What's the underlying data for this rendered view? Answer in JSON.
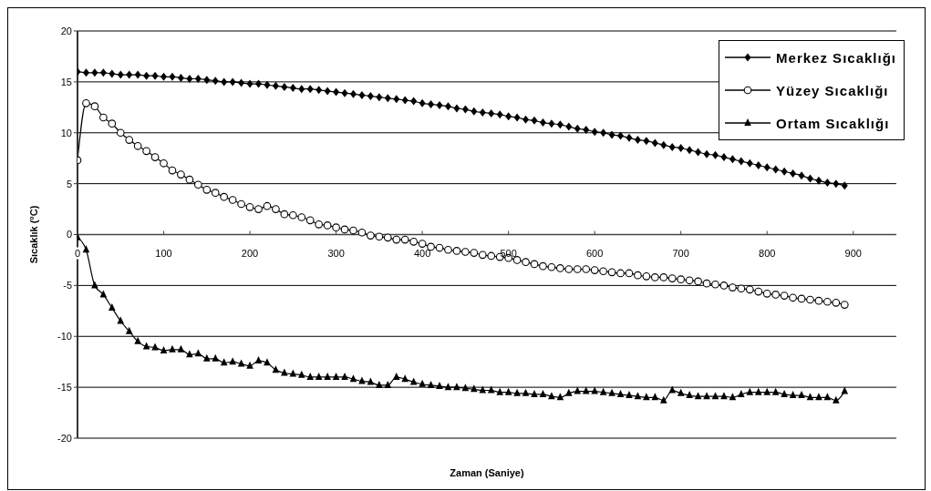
{
  "chart_data": {
    "type": "line",
    "xlabel": "Zaman (Saniye)",
    "ylabel": "Sıcaklık (°C)",
    "x": [
      0,
      10,
      20,
      30,
      40,
      50,
      60,
      70,
      80,
      90,
      100,
      110,
      120,
      130,
      140,
      150,
      160,
      170,
      180,
      190,
      200,
      210,
      220,
      230,
      240,
      250,
      260,
      270,
      280,
      290,
      300,
      310,
      320,
      330,
      340,
      350,
      360,
      370,
      380,
      390,
      400,
      410,
      420,
      430,
      440,
      450,
      460,
      470,
      480,
      490,
      500,
      510,
      520,
      530,
      540,
      550,
      560,
      570,
      580,
      590,
      600,
      610,
      620,
      630,
      640,
      650,
      660,
      670,
      680,
      690,
      700,
      710,
      720,
      730,
      740,
      750,
      760,
      770,
      780,
      790,
      800,
      810,
      820,
      830,
      840,
      850,
      860,
      870,
      880,
      890
    ],
    "xlim": [
      0,
      950
    ],
    "xticks": [
      0,
      100,
      200,
      300,
      400,
      500,
      600,
      700,
      800,
      900
    ],
    "ylim": [
      -20,
      20
    ],
    "yticks": [
      -20,
      -15,
      -10,
      -5,
      0,
      5,
      10,
      15,
      20
    ],
    "grid": "y",
    "legend": "top right",
    "line_style": "solid",
    "series": [
      {
        "name": "Merkez Sıcaklığı",
        "color": "#000000",
        "marker": "diamond",
        "values": [
          16.0,
          15.9,
          15.9,
          15.9,
          15.8,
          15.7,
          15.7,
          15.7,
          15.6,
          15.6,
          15.5,
          15.5,
          15.4,
          15.3,
          15.3,
          15.2,
          15.1,
          15.0,
          15.0,
          14.9,
          14.8,
          14.8,
          14.7,
          14.6,
          14.5,
          14.4,
          14.3,
          14.3,
          14.2,
          14.1,
          14.0,
          13.9,
          13.8,
          13.7,
          13.6,
          13.5,
          13.4,
          13.3,
          13.2,
          13.1,
          12.9,
          12.8,
          12.7,
          12.6,
          12.4,
          12.3,
          12.1,
          12.0,
          11.9,
          11.8,
          11.6,
          11.5,
          11.3,
          11.2,
          11.0,
          10.9,
          10.8,
          10.6,
          10.4,
          10.3,
          10.1,
          10.0,
          9.8,
          9.7,
          9.5,
          9.3,
          9.2,
          9.0,
          8.8,
          8.6,
          8.5,
          8.3,
          8.1,
          7.9,
          7.8,
          7.6,
          7.4,
          7.2,
          7.0,
          6.8,
          6.6,
          6.4,
          6.2,
          6.0,
          5.8,
          5.5,
          5.3,
          5.1,
          5.0,
          4.8
        ]
      },
      {
        "name": "Yüzey Sıcaklığı",
        "color": "#000000",
        "marker": "circle",
        "values": [
          7.3,
          12.9,
          12.6,
          11.5,
          10.9,
          10.0,
          9.3,
          8.7,
          8.2,
          7.6,
          7.0,
          6.3,
          5.9,
          5.4,
          4.9,
          4.4,
          4.1,
          3.7,
          3.4,
          3.0,
          2.7,
          2.5,
          2.8,
          2.5,
          2.0,
          1.9,
          1.7,
          1.4,
          1.0,
          0.9,
          0.7,
          0.5,
          0.4,
          0.2,
          -0.1,
          -0.2,
          -0.3,
          -0.5,
          -0.5,
          -0.7,
          -0.9,
          -1.2,
          -1.3,
          -1.5,
          -1.6,
          -1.7,
          -1.8,
          -2.0,
          -2.1,
          -2.2,
          -2.3,
          -2.5,
          -2.7,
          -2.9,
          -3.1,
          -3.2,
          -3.3,
          -3.4,
          -3.4,
          -3.4,
          -3.5,
          -3.6,
          -3.7,
          -3.8,
          -3.8,
          -4.0,
          -4.1,
          -4.2,
          -4.2,
          -4.3,
          -4.4,
          -4.5,
          -4.6,
          -4.8,
          -4.9,
          -5.0,
          -5.2,
          -5.3,
          -5.4,
          -5.6,
          -5.8,
          -5.9,
          -6.0,
          -6.2,
          -6.3,
          -6.4,
          -6.5,
          -6.6,
          -6.7,
          -6.9
        ]
      },
      {
        "name": "Ortam Sıcaklığı",
        "color": "#000000",
        "marker": "triangle",
        "values": [
          -0.3,
          -1.5,
          -5.0,
          -5.9,
          -7.2,
          -8.5,
          -9.5,
          -10.5,
          -11.0,
          -11.1,
          -11.4,
          -11.3,
          -11.3,
          -11.8,
          -11.7,
          -12.2,
          -12.2,
          -12.6,
          -12.5,
          -12.7,
          -12.9,
          -12.4,
          -12.6,
          -13.3,
          -13.6,
          -13.7,
          -13.8,
          -14.0,
          -14.0,
          -14.0,
          -14.0,
          -14.0,
          -14.2,
          -14.4,
          -14.5,
          -14.8,
          -14.8,
          -14.0,
          -14.2,
          -14.5,
          -14.7,
          -14.8,
          -14.9,
          -15.0,
          -15.0,
          -15.1,
          -15.2,
          -15.3,
          -15.3,
          -15.5,
          -15.5,
          -15.6,
          -15.6,
          -15.7,
          -15.7,
          -15.9,
          -16.0,
          -15.6,
          -15.4,
          -15.4,
          -15.4,
          -15.5,
          -15.6,
          -15.7,
          -15.8,
          -15.9,
          -16.0,
          -16.0,
          -16.3,
          -15.3,
          -15.6,
          -15.8,
          -15.9,
          -15.9,
          -15.9,
          -15.9,
          -16.0,
          -15.7,
          -15.5,
          -15.5,
          -15.5,
          -15.5,
          -15.7,
          -15.8,
          -15.8,
          -16.0,
          -16.0,
          -16.0,
          -16.3,
          -15.4
        ]
      }
    ]
  }
}
